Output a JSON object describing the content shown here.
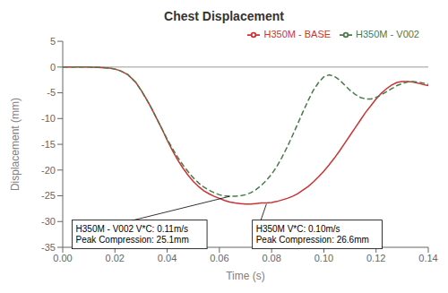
{
  "chart_data": {
    "type": "line",
    "title": "Chest Displacement",
    "x_label": "Time (s)",
    "y_label": "Displacement (mm)",
    "xlim": [
      0.0,
      0.14
    ],
    "ylim": [
      -35,
      5
    ],
    "xticks": [
      {
        "value": 0.0,
        "label": "0.00"
      },
      0.02,
      0.04,
      0.06,
      0.08,
      {
        "value": 0.1,
        "label": "0.10"
      },
      0.12,
      0.14
    ],
    "yticks": [
      5,
      0,
      -5,
      -10,
      -15,
      -20,
      -25,
      -30,
      -35
    ],
    "legend": "upper right",
    "hlines": [
      0
    ],
    "x": [
      0.0,
      0.005,
      0.01,
      0.015,
      0.018,
      0.02,
      0.022,
      0.025,
      0.028,
      0.03,
      0.032,
      0.034,
      0.036,
      0.038,
      0.04,
      0.042,
      0.044,
      0.046,
      0.048,
      0.05,
      0.052,
      0.054,
      0.056,
      0.058,
      0.06,
      0.062,
      0.064,
      0.066,
      0.068,
      0.07,
      0.072,
      0.074,
      0.076,
      0.078,
      0.08,
      0.082,
      0.084,
      0.086,
      0.088,
      0.09,
      0.092,
      0.094,
      0.096,
      0.098,
      0.1,
      0.102,
      0.104,
      0.106,
      0.108,
      0.11,
      0.112,
      0.114,
      0.116,
      0.118,
      0.12,
      0.122,
      0.124,
      0.126,
      0.128,
      0.13,
      0.132,
      0.134,
      0.136,
      0.138,
      0.14
    ],
    "series": [
      {
        "name": "H350M - BASE",
        "color": "#cc3333",
        "line_style": "solid",
        "values": [
          0.0,
          0.0,
          0.0,
          -0.1,
          -0.2,
          -0.4,
          -0.7,
          -1.5,
          -3.0,
          -4.5,
          -6.2,
          -8.0,
          -10.0,
          -12.0,
          -14.2,
          -16.2,
          -18.0,
          -19.6,
          -21.0,
          -22.2,
          -23.2,
          -24.0,
          -24.6,
          -25.1,
          -25.5,
          -25.9,
          -26.2,
          -26.4,
          -26.5,
          -26.6,
          -26.6,
          -26.5,
          -26.4,
          -26.4,
          -26.3,
          -26.1,
          -25.8,
          -25.5,
          -25.1,
          -24.6,
          -23.9,
          -23.2,
          -22.3,
          -21.3,
          -20.2,
          -19.0,
          -17.7,
          -16.3,
          -14.8,
          -13.3,
          -11.8,
          -10.3,
          -8.8,
          -7.5,
          -6.2,
          -5.1,
          -4.2,
          -3.5,
          -3.0,
          -2.8,
          -2.8,
          -2.9,
          -3.1,
          -3.4,
          -3.6
        ]
      },
      {
        "name": "H350M - V002",
        "color": "#4a7a4a",
        "line_style": "dashed",
        "values": [
          0.0,
          0.0,
          0.0,
          -0.1,
          -0.2,
          -0.4,
          -0.7,
          -1.5,
          -3.0,
          -4.5,
          -6.2,
          -8.0,
          -10.0,
          -12.0,
          -14.0,
          -15.8,
          -17.5,
          -19.0,
          -20.3,
          -21.5,
          -22.5,
          -23.3,
          -23.9,
          -24.4,
          -24.8,
          -25.0,
          -25.1,
          -25.1,
          -25.0,
          -24.8,
          -24.4,
          -23.8,
          -23.0,
          -22.0,
          -20.8,
          -19.3,
          -17.5,
          -15.5,
          -13.3,
          -11.0,
          -8.7,
          -6.5,
          -4.5,
          -3.0,
          -1.9,
          -1.5,
          -1.8,
          -2.5,
          -3.5,
          -4.5,
          -5.3,
          -5.9,
          -6.2,
          -6.2,
          -5.9,
          -5.4,
          -4.8,
          -4.2,
          -3.6,
          -3.2,
          -2.9,
          -2.8,
          -2.9,
          -3.1,
          -3.4
        ]
      }
    ],
    "annotations": [
      {
        "text": "H350M - V002 V*C: 0.11m/s\nPeak Compression: 25.1mm",
        "x": 0.064,
        "y": -25.1,
        "text_x": 0.005,
        "text_y": -32.5
      },
      {
        "text": "H350M V*C: 0.10m/s\nPeak Compression: 26.6mm",
        "x": 0.078,
        "y": -26.6,
        "text_x": 0.074,
        "text_y": -32.5
      }
    ]
  }
}
